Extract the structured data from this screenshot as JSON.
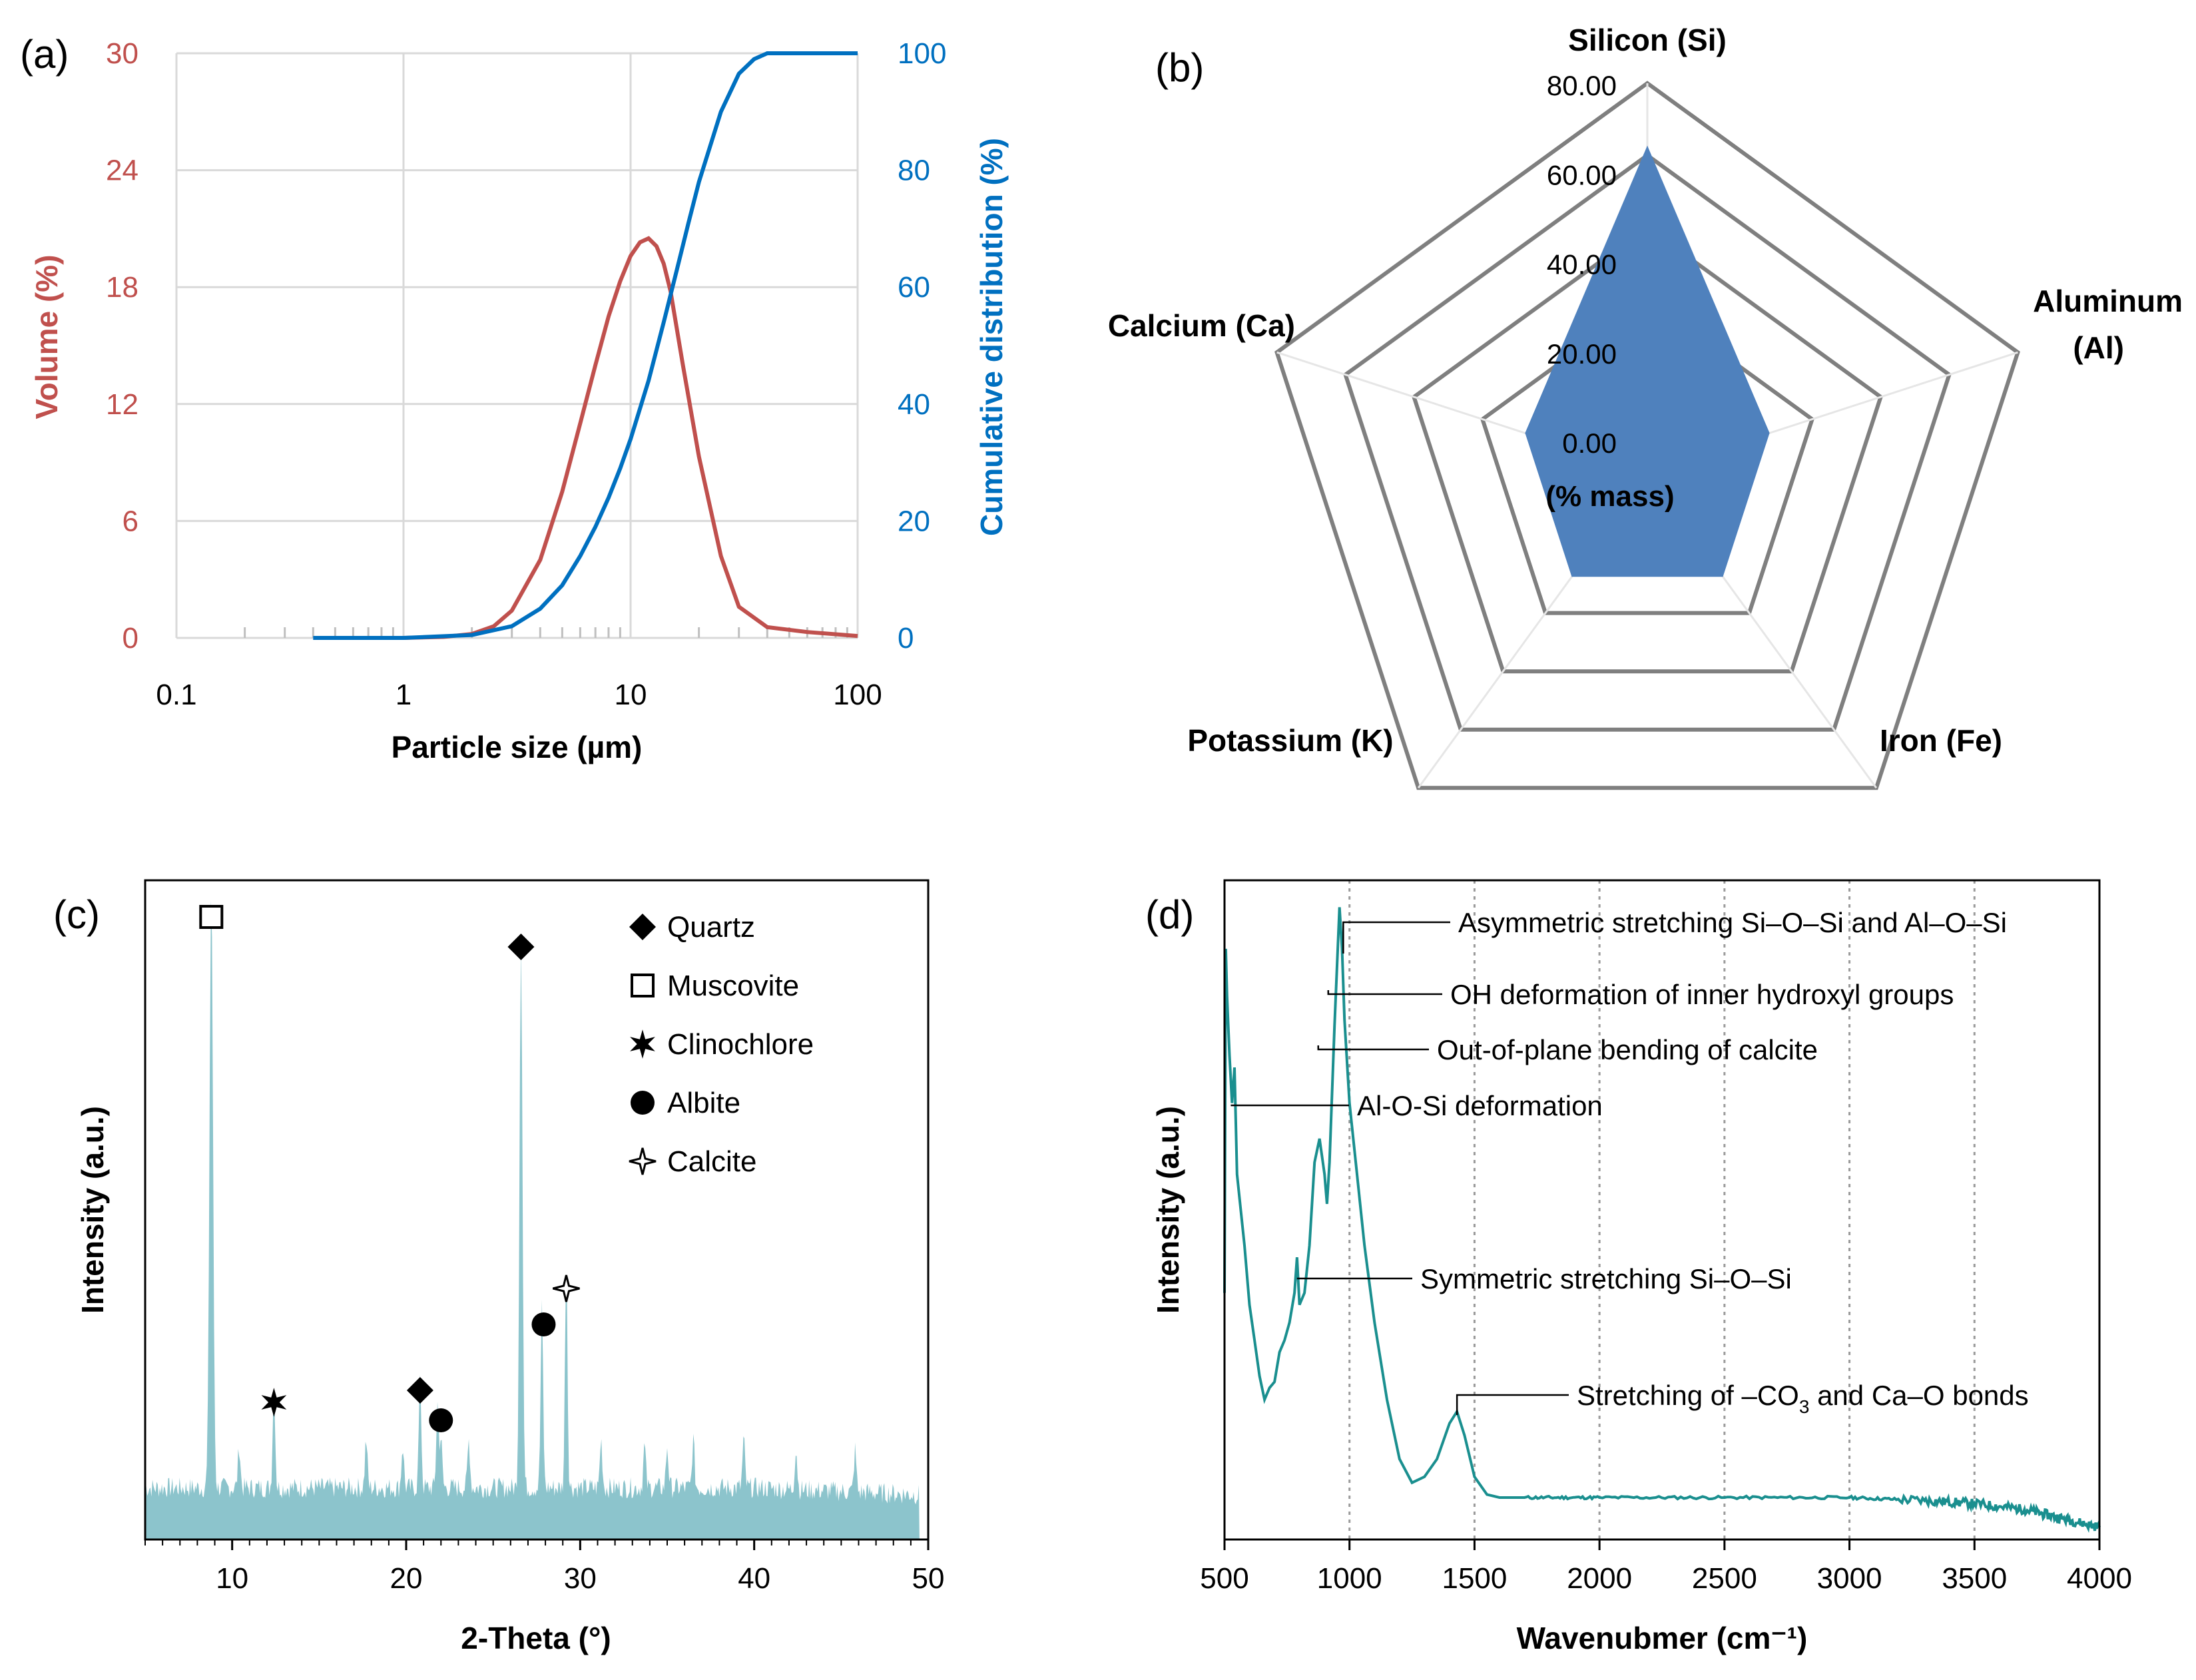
{
  "colors": {
    "volume": "#c0504d",
    "cumulative": "#0070c0",
    "radar_fill": "#4f81bd",
    "xrd_fill": "#8cc4cc",
    "ftir_line": "#1a8f8f",
    "grid": "#d9d9d9",
    "radar_ring": "#7f7f7f"
  },
  "chart_data": [
    {
      "panel": "(a)",
      "type": "line",
      "xlabel": "Particle size (µm)",
      "x_scale": "log",
      "xlim": [
        0.1,
        100
      ],
      "x_ticks": [
        "0.1",
        "1",
        "10",
        "100"
      ],
      "grid": true,
      "y_left": {
        "label": "Volume (%)",
        "ylim": [
          0,
          30
        ],
        "ticks": [
          "0",
          "6",
          "12",
          "18",
          "24",
          "30"
        ]
      },
      "y_right": {
        "label": "Cumulative distribution (%)",
        "ylim": [
          0,
          100
        ],
        "ticks": [
          "0",
          "20",
          "40",
          "60",
          "80",
          "100"
        ]
      },
      "series": [
        {
          "name": "Volume (%)",
          "axis": "left",
          "color": "#c0504d",
          "x": [
            1.0,
            1.5,
            2.0,
            2.5,
            3.0,
            4.0,
            5.0,
            6.0,
            7.0,
            8.0,
            9.0,
            10.0,
            11.0,
            12.0,
            13.0,
            14.0,
            15.0,
            17.0,
            20.0,
            25.0,
            30.0,
            40.0,
            60.0,
            100.0
          ],
          "y": [
            0.0,
            0.05,
            0.2,
            0.6,
            1.4,
            4.0,
            7.5,
            11.0,
            14.0,
            16.5,
            18.3,
            19.6,
            20.3,
            20.5,
            20.1,
            19.2,
            17.8,
            14.0,
            9.3,
            4.2,
            1.6,
            0.55,
            0.3,
            0.1
          ]
        },
        {
          "name": "Cumulative distribution (%)",
          "axis": "right",
          "color": "#0070c0",
          "x": [
            0.4,
            1.0,
            2.0,
            3.0,
            4.0,
            5.0,
            6.0,
            7.0,
            8.0,
            9.0,
            10.0,
            12.0,
            14.0,
            16.0,
            18.0,
            20.0,
            25.0,
            30.0,
            35.0,
            40.0,
            100.0
          ],
          "y": [
            0.0,
            0.0,
            0.5,
            2.0,
            5.0,
            9.0,
            14.0,
            19.0,
            24.0,
            29.0,
            34.0,
            44.0,
            54.0,
            63.0,
            71.0,
            78.0,
            90.0,
            96.5,
            99.0,
            100.0,
            100.0
          ]
        }
      ]
    },
    {
      "panel": "(b)",
      "type": "radar",
      "unit_label": "(% mass)",
      "rlim": [
        0,
        80
      ],
      "r_ticks": [
        "0.00",
        "20.00",
        "40.00",
        "60.00",
        "80.00"
      ],
      "categories": [
        "Silicon (Si)",
        "Aluminum (Al)",
        "Iron (Fe)",
        "Potassium (K)",
        "Calcium (Ca)"
      ],
      "values": [
        64.0,
        5.0,
        4.0,
        3.0,
        4.0
      ]
    },
    {
      "panel": "(c)",
      "type": "area",
      "xlabel": "2-Theta (°)",
      "ylabel": "Intensity (a.u.)",
      "xlim": [
        5,
        50
      ],
      "x_ticks": [
        "10",
        "20",
        "30",
        "40",
        "50"
      ],
      "baseline": 6,
      "peaks": [
        {
          "x": 8.8,
          "y": 100,
          "w": 0.14
        },
        {
          "x": 10.4,
          "y": 7,
          "w": 0.1
        },
        {
          "x": 12.4,
          "y": 17,
          "w": 0.1
        },
        {
          "x": 17.7,
          "y": 8,
          "w": 0.1
        },
        {
          "x": 19.8,
          "y": 7,
          "w": 0.1
        },
        {
          "x": 20.8,
          "y": 18,
          "w": 0.1
        },
        {
          "x": 21.8,
          "y": 14,
          "w": 0.1
        },
        {
          "x": 22.0,
          "y": 8,
          "w": 0.1
        },
        {
          "x": 23.6,
          "y": 8,
          "w": 0.1
        },
        {
          "x": 26.6,
          "y": 92,
          "w": 0.12
        },
        {
          "x": 27.8,
          "y": 30,
          "w": 0.1
        },
        {
          "x": 29.2,
          "y": 38,
          "w": 0.1
        },
        {
          "x": 31.2,
          "y": 8,
          "w": 0.1
        },
        {
          "x": 33.7,
          "y": 7,
          "w": 0.1
        },
        {
          "x": 35.0,
          "y": 7,
          "w": 0.1
        },
        {
          "x": 36.5,
          "y": 8,
          "w": 0.1
        },
        {
          "x": 39.4,
          "y": 8,
          "w": 0.1
        },
        {
          "x": 42.4,
          "y": 7,
          "w": 0.1
        },
        {
          "x": 45.8,
          "y": 7,
          "w": 0.1
        }
      ],
      "markers": [
        {
          "phase": "Muscovite",
          "symbol": "open-square",
          "x": 8.8,
          "y": 103
        },
        {
          "phase": "Clinochlore",
          "symbol": "star",
          "x": 12.4,
          "y": 22
        },
        {
          "phase": "Quartz",
          "symbol": "filled-diamond",
          "x": 20.8,
          "y": 24
        },
        {
          "phase": "Albite",
          "symbol": "filled-circle",
          "x": 22.0,
          "y": 19
        },
        {
          "phase": "Quartz",
          "symbol": "filled-diamond",
          "x": 26.6,
          "y": 98
        },
        {
          "phase": "Albite",
          "symbol": "filled-circle",
          "x": 27.9,
          "y": 35
        },
        {
          "phase": "Calcite",
          "symbol": "open-star",
          "x": 29.2,
          "y": 41
        }
      ],
      "legend": [
        {
          "label": "Quartz",
          "symbol": "filled-diamond"
        },
        {
          "label": "Muscovite",
          "symbol": "open-square"
        },
        {
          "label": "Clinochlore",
          "symbol": "star"
        },
        {
          "label": "Albite",
          "symbol": "filled-circle"
        },
        {
          "label": "Calcite",
          "symbol": "open-star"
        }
      ],
      "legend_position": "top-right"
    },
    {
      "panel": "(d)",
      "type": "line",
      "xlabel": "Wavenubmer (cm⁻¹)",
      "ylabel": "Intensity (a.u.)",
      "xlim": [
        500,
        4000
      ],
      "x_ticks": [
        "500",
        "1000",
        "1500",
        "2000",
        "2500",
        "3000",
        "3500",
        "4000"
      ],
      "vertical_guides": [
        1000,
        1500,
        2000,
        2500,
        3000,
        3500
      ],
      "series": [
        {
          "color": "#1a8f8f",
          "x": [
            500,
            505,
            510,
            520,
            530,
            540,
            550,
            560,
            580,
            600,
            620,
            640,
            660,
            680,
            700,
            720,
            740,
            760,
            780,
            790,
            800,
            820,
            840,
            860,
            880,
            900,
            910,
            920,
            940,
            960,
            970,
            980,
            1000,
            1030,
            1060,
            1100,
            1150,
            1200,
            1250,
            1300,
            1350,
            1400,
            1430,
            1460,
            1500,
            1550,
            1600,
            1700,
            2000,
            2500,
            3000,
            3300,
            3500,
            3700,
            3850,
            4000
          ],
          "y": [
            40,
            98,
            90,
            80,
            72,
            78,
            60,
            56,
            48,
            38,
            32,
            26,
            22,
            24,
            25,
            30,
            32,
            35,
            40,
            46,
            38,
            40,
            48,
            62,
            66,
            60,
            55,
            62,
            85,
            105,
            98,
            86,
            72,
            60,
            48,
            35,
            22,
            12,
            8,
            9,
            12,
            18,
            20,
            16,
            9,
            6,
            5.5,
            5.5,
            5.5,
            5.5,
            5.5,
            5,
            4.5,
            3.5,
            2,
            0.5
          ]
        }
      ],
      "annotations": [
        {
          "text": "Asymmetric stretching Si–O–Si and Al–O–Si",
          "x": 975
        },
        {
          "text": "OH deformation of inner hydroxyl groups",
          "x": 915
        },
        {
          "text": "Out-of-plane bending of calcite",
          "x": 875
        },
        {
          "text": "Al-O-Si deformation",
          "x": 525
        },
        {
          "text": "Symmetric stretching Si–O–Si",
          "x": 790
        },
        {
          "text": "Stretching of –CO",
          "sub": "3",
          "text2": " and Ca–O bonds",
          "x": 1430
        }
      ]
    }
  ],
  "panel_labels": [
    "(a)",
    "(b)",
    "(c)",
    "(d)"
  ]
}
